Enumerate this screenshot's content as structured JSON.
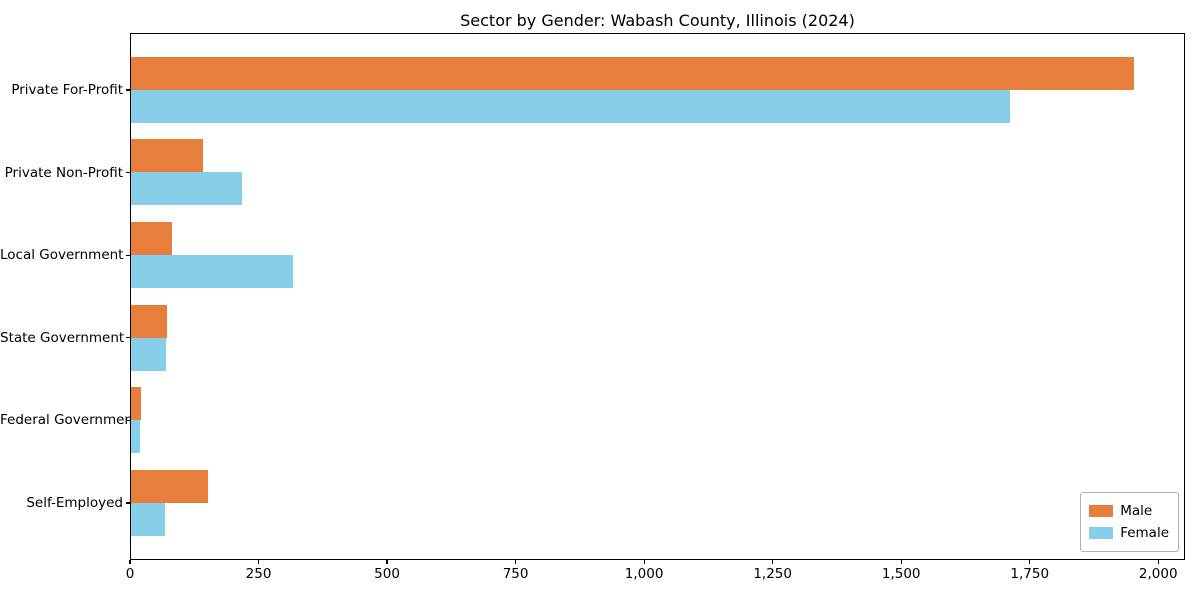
{
  "chart_data": {
    "type": "bar",
    "orientation": "horizontal",
    "title": "Sector by Gender: Wabash County, Illinois (2024)",
    "categories": [
      "Private For-Profit",
      "Private Non-Profit",
      "Local Government",
      "State Government",
      "Federal Government",
      "Self-Employed"
    ],
    "series": [
      {
        "name": "Male",
        "color": "#e87e3b",
        "values": [
          1950,
          140,
          80,
          70,
          20,
          150
        ]
      },
      {
        "name": "Female",
        "color": "#87ceeb",
        "values": [
          1710,
          215,
          315,
          68,
          18,
          67
        ]
      }
    ],
    "xlabel": "",
    "ylabel": "",
    "xlim": [
      0,
      2052
    ],
    "xticks": [
      {
        "value": 0,
        "label": "0"
      },
      {
        "value": 250,
        "label": "250"
      },
      {
        "value": 500,
        "label": "500"
      },
      {
        "value": 750,
        "label": "750"
      },
      {
        "value": 1000,
        "label": "1,000"
      },
      {
        "value": 1250,
        "label": "1,250"
      },
      {
        "value": 1500,
        "label": "1,500"
      },
      {
        "value": 1750,
        "label": "1,750"
      },
      {
        "value": 2000,
        "label": "2,000"
      }
    ],
    "grid": false,
    "legend": {
      "position": "lower-right",
      "entries": [
        {
          "label": "Male",
          "color": "#e87e3b"
        },
        {
          "label": "Female",
          "color": "#87ceeb"
        }
      ]
    },
    "axis_color": "#000000",
    "background_color": "#ffffff"
  }
}
